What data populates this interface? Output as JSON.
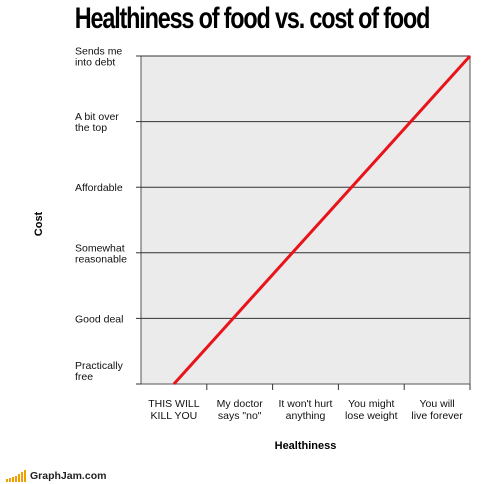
{
  "chart_data": {
    "type": "line",
    "title": "Healthiness of food vs. cost of food",
    "xlabel": "Healthiness",
    "ylabel": "Cost",
    "x_categories": [
      "THIS WILL KILL YOU",
      "My doctor says \"no\"",
      "It won't hurt anything",
      "You might lose weight",
      "You will live forever"
    ],
    "y_categories": [
      "Practically free",
      "Good deal",
      "Somewhat reasonable",
      "Affordable",
      "A bit over the top",
      "Sends me into debt"
    ],
    "series": [
      {
        "x": [
          0.5,
          5.0
        ],
        "y": [
          0.0,
          5.0
        ],
        "color": "#e8141a"
      }
    ],
    "xlim": [
      0,
      5
    ],
    "ylim": [
      0,
      5
    ],
    "grid": "horizontal",
    "legend": "none"
  },
  "watermark": {
    "text": "GraphJam.com",
    "color": "#f0a000"
  }
}
